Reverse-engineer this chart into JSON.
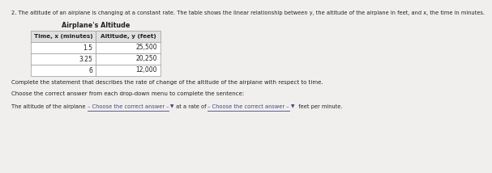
{
  "title_main": "2. The altitude of an airplane is changing at a constant rate. The table shows the linear relationship between y, the altitude of the airplane in feet, and x, the time in minutes.",
  "table_title": "Airplane's Altitude",
  "col1_header": "Time, x (minutes)",
  "col2_header": "Altitude, y (feet)",
  "rows": [
    [
      "1.5",
      "25,500"
    ],
    [
      "3.25",
      "20,250"
    ],
    [
      "6",
      "12,000"
    ]
  ],
  "text1": "Complete the statement that describes the rate of change of the altitude of the airplane with respect to time.",
  "text2": "Choose the correct answer from each drop-down menu to complete the sentence:",
  "sentence_part1": "The altitude of the airplane",
  "sentence_dd1": "– Choose the correct answer –",
  "sentence_dd1_arrow": " ▼",
  "sentence_mid": "at a rate of",
  "sentence_dd2": "– Choose the correct answer –",
  "sentence_dd2_arrow": " ▼",
  "sentence_end": "feet per minute.",
  "bg_color": "#f0efed",
  "table_bg": "#ffffff",
  "header_bg": "#e0e0e0",
  "border_color": "#999999",
  "text_color": "#222222",
  "dropdown_color": "#444488",
  "font_size_title": 4.8,
  "font_size_table_header": 5.2,
  "font_size_table_title": 5.8,
  "font_size_table_data": 5.5,
  "font_size_body": 5.0,
  "font_size_sentence": 4.8
}
